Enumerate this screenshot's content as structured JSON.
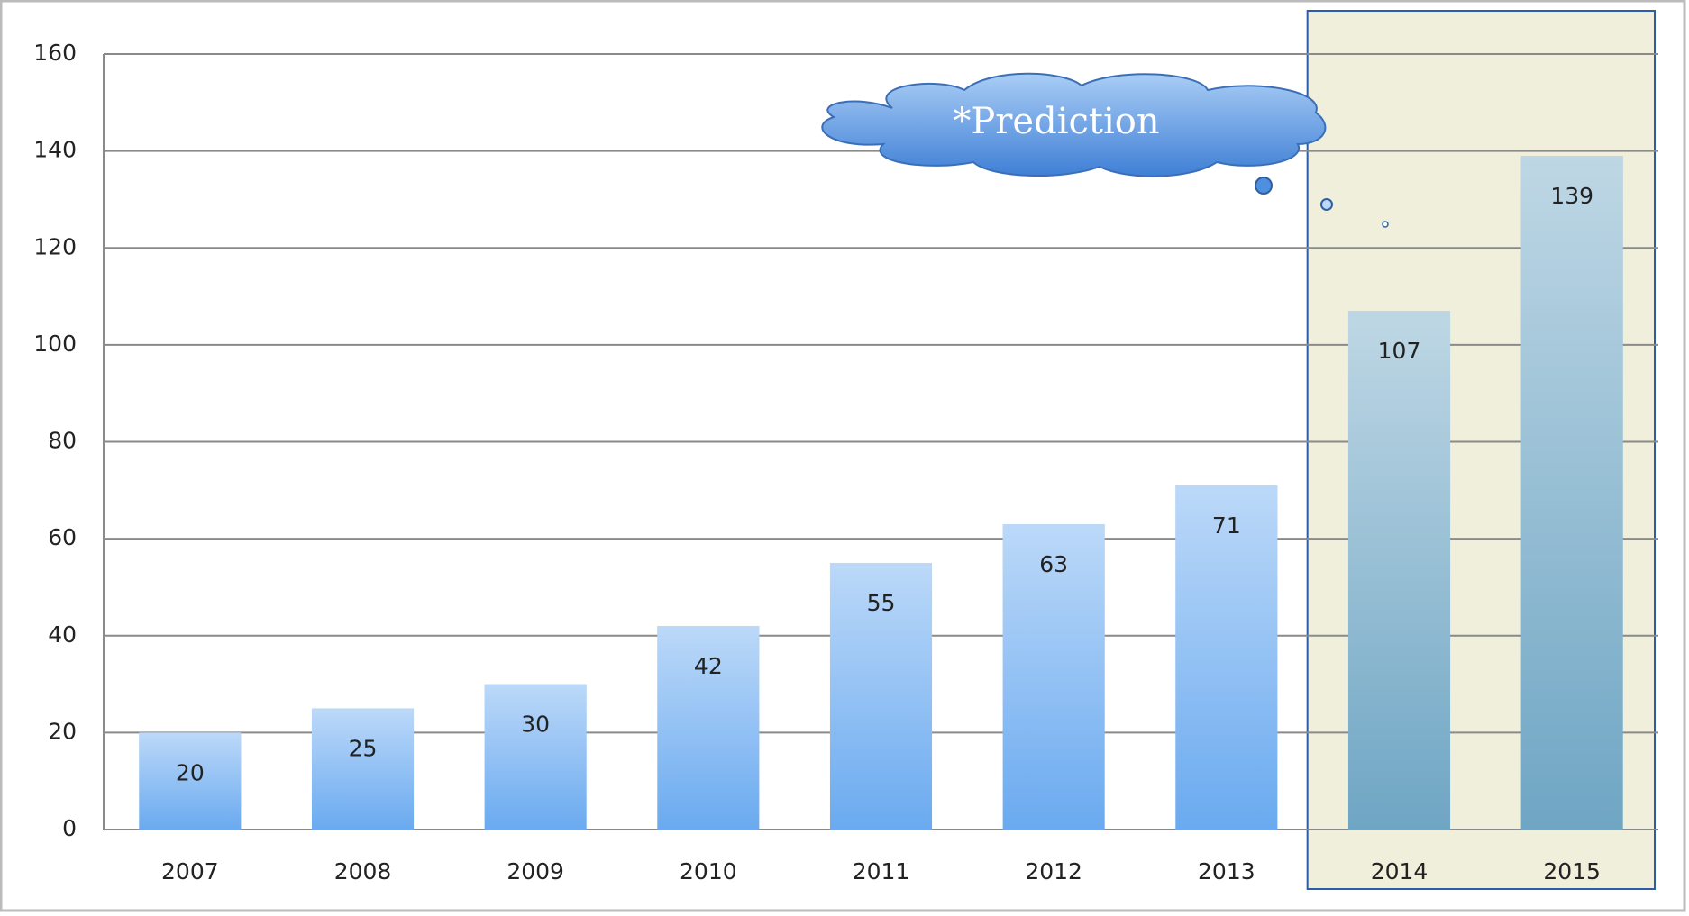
{
  "chart_data": {
    "type": "bar",
    "categories": [
      "2007",
      "2008",
      "2009",
      "2010",
      "2011",
      "2012",
      "2013",
      "2014",
      "2015"
    ],
    "values": [
      20,
      25,
      30,
      42,
      55,
      63,
      71,
      107,
      139
    ],
    "colors": [
      "#6aaaf0",
      "#6aaaf0",
      "#6aaaf0",
      "#6aaaf0",
      "#6aaaf0",
      "#6aaaf0",
      "#6aaaf0",
      "#6fa6c4",
      "#6fa6c4"
    ],
    "ylim": [
      0,
      160
    ],
    "yticks": [
      0,
      20,
      40,
      60,
      80,
      100,
      120,
      140,
      160
    ],
    "grid": true,
    "annotation": "*Prediction"
  }
}
